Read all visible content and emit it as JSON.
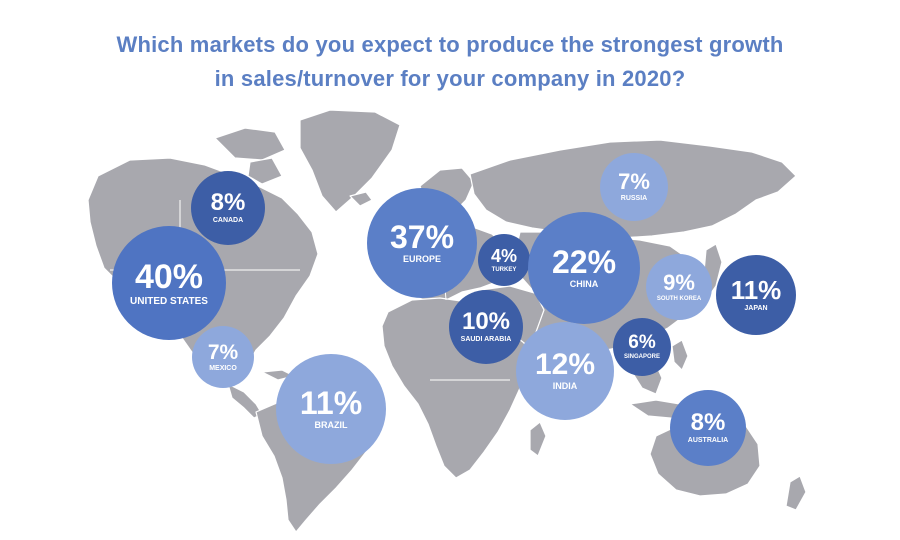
{
  "title": {
    "line1": "Which markets do you expect to produce the strongest growth",
    "line2": "in sales/turnover for your company in 2020?"
  },
  "colors": {
    "title": "#5b7fc3",
    "land": "#a8a8ae",
    "bubble_dark": "#3d5ea6",
    "bubble_mid": "#5b7fc8",
    "bubble_light": "#8ea8dc"
  },
  "markets": [
    {
      "id": "united-states",
      "value": "40%",
      "label": "UNITED STATES"
    },
    {
      "id": "canada",
      "value": "8%",
      "label": "CANADA"
    },
    {
      "id": "mexico",
      "value": "7%",
      "label": "MEXICO"
    },
    {
      "id": "brazil",
      "value": "11%",
      "label": "BRAZIL"
    },
    {
      "id": "europe",
      "value": "37%",
      "label": "EUROPE"
    },
    {
      "id": "turkey",
      "value": "4%",
      "label": "TURKEY"
    },
    {
      "id": "saudi-arabia",
      "value": "10%",
      "label": "SAUDI ARABIA"
    },
    {
      "id": "china",
      "value": "22%",
      "label": "CHINA"
    },
    {
      "id": "russia",
      "value": "7%",
      "label": "RUSSIA"
    },
    {
      "id": "india",
      "value": "12%",
      "label": "INDIA"
    },
    {
      "id": "south-korea",
      "value": "9%",
      "label": "SOUTH KOREA"
    },
    {
      "id": "japan",
      "value": "11%",
      "label": "JAPAN"
    },
    {
      "id": "singapore",
      "value": "6%",
      "label": "SINGAPORE"
    },
    {
      "id": "australia",
      "value": "8%",
      "label": "AUSTRALIA"
    }
  ]
}
